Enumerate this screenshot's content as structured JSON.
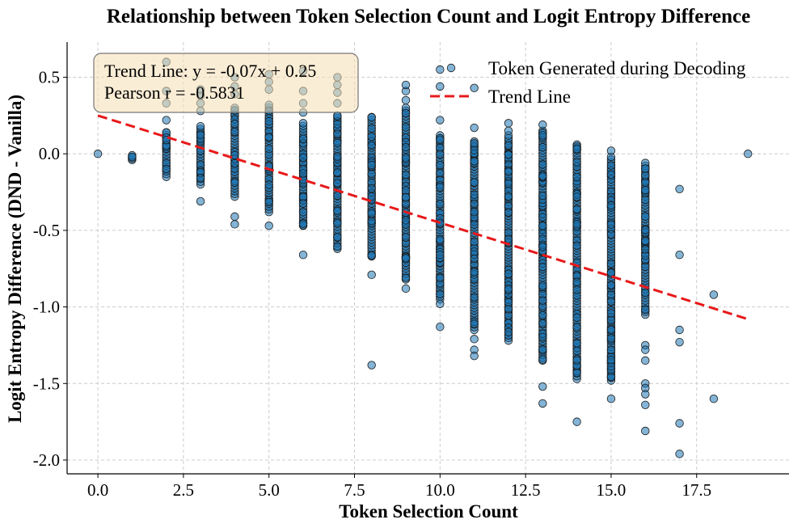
{
  "chart_data": {
    "type": "scatter",
    "title": "Relationship between Token Selection Count and Logit Entropy Difference",
    "xlabel": "Token Selection Count",
    "ylabel": "Logit Entropy Difference (DND - Vanilla)",
    "xlim": [
      -0.9,
      20.2
    ],
    "ylim": [
      -2.09,
      0.73
    ],
    "xticks": [
      0.0,
      2.5,
      5.0,
      7.5,
      10.0,
      12.5,
      15.0,
      17.5
    ],
    "xtick_labels": [
      "0.0",
      "2.5",
      "5.0",
      "7.5",
      "10.0",
      "12.5",
      "15.0",
      "17.5"
    ],
    "yticks": [
      0.5,
      0.0,
      -0.5,
      -1.0,
      -1.5,
      -2.0
    ],
    "ytick_labels": [
      "0.5",
      "0.0",
      "-0.5",
      "-1.0",
      "-1.5",
      "-2.0"
    ],
    "grid": true,
    "legend_position": "top-right",
    "legend": {
      "scatter_label": "Token Generated during Decoding",
      "trend_label": "Trend Line"
    },
    "trend_line": {
      "slope": -0.07,
      "intercept": 0.25,
      "x_range": [
        0,
        19
      ]
    },
    "annotation": {
      "line1": "Trend Line: y = -0.07x + 0.25",
      "line2": "Pearson r = -0.5831"
    },
    "series": [
      {
        "name": "Token Generated during Decoding",
        "columns": [
          {
            "x": 0,
            "min": 0.0,
            "max": 0.0,
            "outliers": []
          },
          {
            "x": 1,
            "min": -0.04,
            "max": -0.01,
            "outliers": []
          },
          {
            "x": 2,
            "min": -0.15,
            "max": 0.14,
            "outliers": [
              0.6,
              0.41,
              0.33,
              0.22
            ]
          },
          {
            "x": 3,
            "min": -0.2,
            "max": 0.18,
            "outliers": [
              -0.31,
              0.28,
              0.33,
              0.38,
              0.42
            ]
          },
          {
            "x": 4,
            "min": -0.28,
            "max": 0.3,
            "outliers": [
              -0.46,
              -0.41,
              0.39,
              0.44,
              0.5
            ]
          },
          {
            "x": 5,
            "min": -0.38,
            "max": 0.32,
            "outliers": [
              -0.47,
              0.42,
              0.47,
              0.52
            ]
          },
          {
            "x": 6,
            "min": -0.47,
            "max": 0.2,
            "outliers": [
              -0.66,
              0.27,
              0.33,
              0.41,
              0.54
            ]
          },
          {
            "x": 7,
            "min": -0.62,
            "max": 0.25,
            "outliers": [
              0.33,
              0.4,
              0.45,
              0.5
            ]
          },
          {
            "x": 8,
            "min": -0.67,
            "max": 0.24,
            "outliers": [
              -0.79,
              -1.38
            ]
          },
          {
            "x": 9,
            "min": -0.82,
            "max": 0.3,
            "outliers": [
              -0.88,
              0.35,
              0.41,
              0.45
            ]
          },
          {
            "x": 10,
            "min": -0.95,
            "max": 0.12,
            "outliers": [
              -0.98,
              -1.13,
              0.22,
              0.44,
              0.55
            ]
          },
          {
            "x": 11,
            "min": -1.15,
            "max": 0.08,
            "outliers": [
              -1.21,
              -1.28,
              -1.32,
              0.17,
              0.43
            ]
          },
          {
            "x": 12,
            "min": -1.22,
            "max": 0.12,
            "outliers": [
              0.15,
              0.2
            ]
          },
          {
            "x": 13,
            "min": -1.35,
            "max": 0.15,
            "outliers": [
              -1.52,
              -1.63,
              0.19
            ]
          },
          {
            "x": 14,
            "min": -1.47,
            "max": 0.06,
            "outliers": [
              -1.75
            ]
          },
          {
            "x": 15,
            "min": -1.48,
            "max": -0.02,
            "outliers": [
              -1.6,
              0.02
            ]
          },
          {
            "x": 16,
            "min": -1.05,
            "max": -0.06,
            "outliers": [
              -1.25,
              -1.28,
              -1.35,
              -1.5,
              -1.53,
              -1.57,
              -1.64,
              -1.81
            ]
          },
          {
            "x": 17,
            "min": -0.66,
            "max": -0.66,
            "outliers": [
              -0.23,
              -1.15,
              -1.23,
              -1.76,
              -1.96
            ]
          },
          {
            "x": 18,
            "min": -0.92,
            "max": -0.92,
            "outliers": [
              -1.6
            ]
          },
          {
            "x": 19,
            "min": 0.0,
            "max": 0.0,
            "outliers": []
          }
        ]
      }
    ]
  }
}
